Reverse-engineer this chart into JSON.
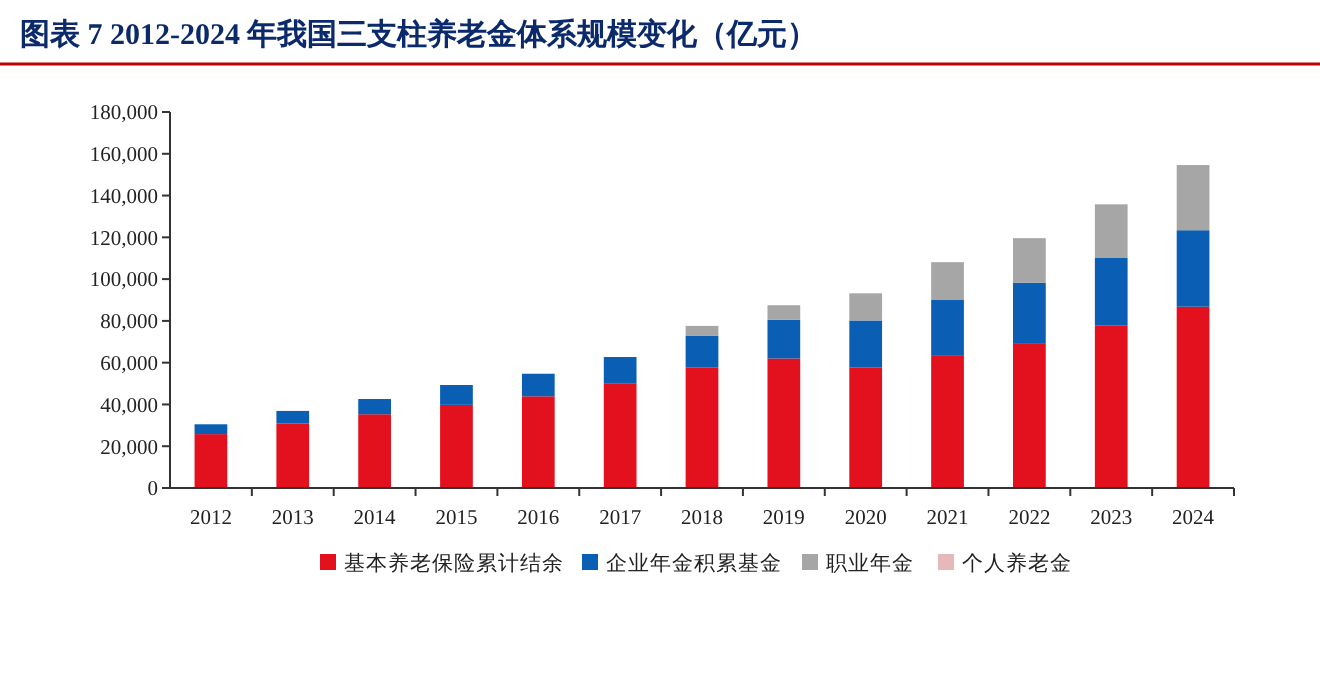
{
  "chart_data": {
    "type": "bar",
    "title": "图表 7   2012-2024 年我国三支柱养老金体系规模变化（亿元）",
    "stacked": true,
    "legend": "bottom",
    "grid": false,
    "categories": [
      "2012",
      "2013",
      "2014",
      "2015",
      "2016",
      "2017",
      "2018",
      "2019",
      "2020",
      "2021",
      "2022",
      "2023",
      "2024"
    ],
    "ylim": [
      0,
      180000
    ],
    "yticks": [
      {
        "value": 0,
        "label": "0"
      },
      {
        "value": 20000,
        "label": "20,000"
      },
      {
        "value": 40000,
        "label": "40,000"
      },
      {
        "value": 60000,
        "label": "60,000"
      },
      {
        "value": 80000,
        "label": "80,000"
      },
      {
        "value": 100000,
        "label": "100,000"
      },
      {
        "value": 120000,
        "label": "120,000"
      },
      {
        "value": 140000,
        "label": "140,000"
      },
      {
        "value": 160000,
        "label": "160,000"
      },
      {
        "value": 180000,
        "label": "180,000"
      }
    ],
    "series": [
      {
        "name": "基本养老保险累计结余",
        "color": "#e3101e",
        "values": [
          25800,
          30900,
          35300,
          39800,
          43900,
          49900,
          57600,
          62000,
          57600,
          63600,
          69000,
          77900,
          86800
        ]
      },
      {
        "name": "企业年金积累基金",
        "color": "#0a5fb4",
        "values": [
          4700,
          6000,
          7300,
          9500,
          10800,
          12800,
          15200,
          18500,
          22600,
          26400,
          29300,
          32200,
          36600
        ]
      },
      {
        "name": "职业年金",
        "color": "#a6a6a6",
        "values": [
          null,
          null,
          null,
          null,
          null,
          null,
          4800,
          7000,
          13000,
          18100,
          21300,
          25700,
          31200
        ]
      },
      {
        "name": "个人养老金",
        "color": "#e6b9b8",
        "values": [
          null,
          null,
          null,
          null,
          null,
          null,
          null,
          null,
          null,
          null,
          null,
          null,
          null
        ]
      }
    ]
  }
}
